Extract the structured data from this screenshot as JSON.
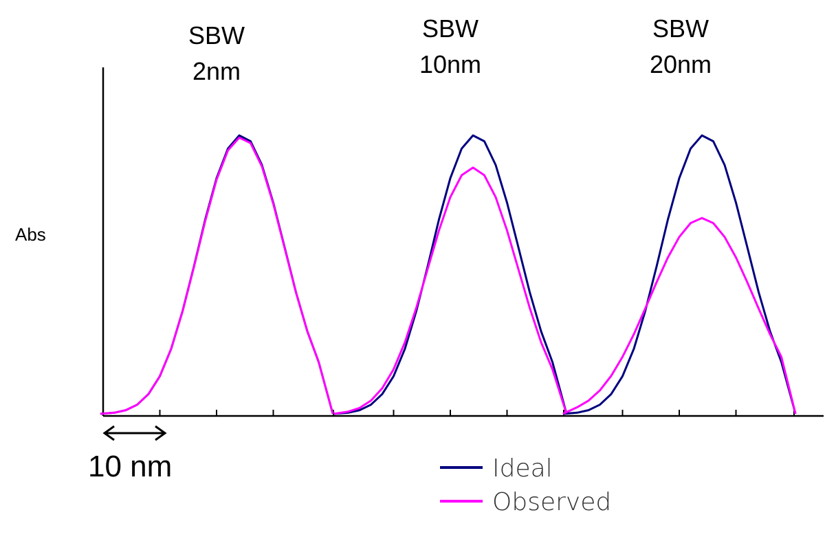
{
  "chart_data": {
    "type": "line",
    "ylabel": "Abs",
    "xlabel": "",
    "scale_bar": {
      "label": "10 nm",
      "span_nm": 10
    },
    "grid": false,
    "legend_position": "bottom-center",
    "ylim": [
      0,
      1
    ],
    "colors": {
      "ideal": "#00007f",
      "observed": "#ff00ff"
    },
    "panels": [
      {
        "title_line1": "SBW",
        "title_line2": "2nm",
        "x": [
          -18,
          -16,
          -14,
          -12,
          -10,
          -8,
          -6,
          -4,
          -2,
          0,
          2,
          4,
          6,
          8,
          10,
          12,
          14,
          16,
          18
        ],
        "series": [
          {
            "name": "Ideal",
            "values": [
              0.005,
              0.012,
              0.027,
              0.056,
              0.105,
              0.18,
              0.283,
              0.405,
              0.534,
              0.647,
              0.728,
              0.764,
              0.748,
              0.683,
              0.58,
              0.458,
              0.335,
              0.228,
              0.144
            ]
          },
          {
            "name": "Observed",
            "values": [
              0.005,
              0.012,
              0.027,
              0.056,
              0.105,
              0.18,
              0.282,
              0.403,
              0.53,
              0.643,
              0.723,
              0.758,
              0.743,
              0.679,
              0.577,
              0.456,
              0.334,
              0.228,
              0.144
            ]
          }
        ]
      },
      {
        "title_line1": "SBW",
        "title_line2": "10nm",
        "x": [
          -18,
          -16,
          -14,
          -12,
          -10,
          -8,
          -6,
          -4,
          -2,
          0,
          2,
          4,
          6,
          8,
          10,
          12,
          14,
          16,
          18
        ],
        "series": [
          {
            "name": "Ideal",
            "values": [
              0.005,
              0.012,
              0.027,
              0.056,
              0.105,
              0.18,
              0.283,
              0.405,
              0.534,
              0.647,
              0.728,
              0.764,
              0.748,
              0.683,
              0.58,
              0.458,
              0.335,
              0.228,
              0.144
            ]
          },
          {
            "name": "Observed",
            "values": [
              0.008,
              0.018,
              0.038,
              0.072,
              0.124,
              0.198,
              0.292,
              0.398,
              0.504,
              0.595,
              0.655,
              0.676,
              0.655,
              0.595,
              0.504,
              0.398,
              0.292,
              0.198,
              0.124
            ]
          }
        ]
      },
      {
        "title_line1": "SBW",
        "title_line2": "20nm",
        "x": [
          -18,
          -16,
          -14,
          -12,
          -10,
          -8,
          -6,
          -4,
          -2,
          0,
          2,
          4,
          6,
          8,
          10,
          12,
          14,
          16,
          18
        ],
        "series": [
          {
            "name": "Ideal",
            "values": [
              0.005,
              0.012,
              0.027,
              0.056,
              0.105,
              0.18,
              0.283,
              0.405,
              0.534,
              0.647,
              0.728,
              0.764,
              0.748,
              0.683,
              0.58,
              0.458,
              0.335,
              0.228,
              0.144
            ]
          },
          {
            "name": "Observed",
            "values": [
              0.02,
              0.038,
              0.066,
              0.106,
              0.158,
              0.22,
              0.29,
              0.362,
              0.43,
              0.486,
              0.524,
              0.538,
              0.524,
              0.486,
              0.43,
              0.362,
              0.29,
              0.22,
              0.158
            ]
          }
        ]
      }
    ],
    "legend": [
      {
        "name": "Ideal"
      },
      {
        "name": "Observed"
      }
    ]
  }
}
